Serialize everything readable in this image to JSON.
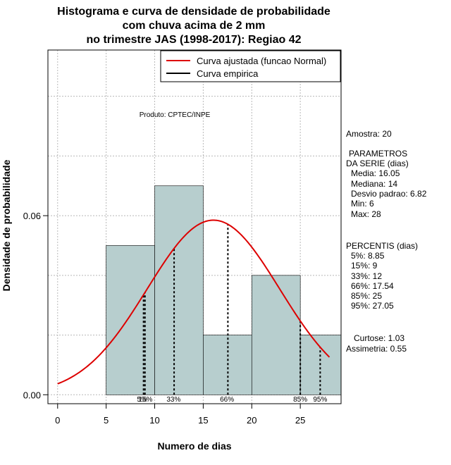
{
  "chart_data": {
    "type": "histogram",
    "title": [
      "Histograma e curva de densidade de probabilidade",
      "com chuva acima de 2 mm",
      "no trimestre JAS (1998-2017): Regiao 42"
    ],
    "xlabel": "Numero de dias",
    "ylabel": "Densidade de probabilidade",
    "xlim": [
      -1,
      29.2
    ],
    "ylim": [
      -0.003,
      0.1155
    ],
    "xticks": [
      0,
      5,
      10,
      15,
      20,
      25
    ],
    "yticks": [
      0.0,
      0.06
    ],
    "ytick_labels": [
      "0.00",
      "0.06"
    ],
    "grid": true,
    "bins": [
      {
        "from": 5,
        "to": 10,
        "density": 0.05
      },
      {
        "from": 10,
        "to": 15,
        "density": 0.07
      },
      {
        "from": 15,
        "to": 20,
        "density": 0.02
      },
      {
        "from": 20,
        "to": 25,
        "density": 0.04
      },
      {
        "from": 25,
        "to": 30,
        "density": 0.02
      }
    ],
    "normal_fit": {
      "mean": 16.05,
      "sd": 6.82,
      "x_from": 0,
      "x_to": 28,
      "color": "#dd0000"
    },
    "percentile_lines": [
      {
        "label": "5%",
        "x": 8.85
      },
      {
        "label": "15%",
        "x": 9
      },
      {
        "label": "33%",
        "x": 12
      },
      {
        "label": "66%",
        "x": 17.54
      },
      {
        "label": "85%",
        "x": 25
      },
      {
        "label": "95%",
        "x": 27.05
      }
    ],
    "percentile_annotations": [
      {
        "text": "5%",
        "x": 8.7
      },
      {
        "text": "15%",
        "x": 9.05
      },
      {
        "text": "33%",
        "x": 11.95
      },
      {
        "text": "66%",
        "x": 17.45
      },
      {
        "text": "85%",
        "x": 25
      },
      {
        "text": "95%",
        "x": 27.05
      }
    ],
    "legend": {
      "position": "top-right",
      "entries": [
        {
          "label": "Curva ajustada (funcao Normal)",
          "color": "#dd0000"
        },
        {
          "label": "Curva empirica",
          "color": "#000000"
        }
      ]
    },
    "annotation": "Produto: CPTEC/INPE",
    "bar_color": "#b7cece"
  },
  "side_panel": {
    "amostra": "Amostra: 20",
    "param_title_1": "PARAMETROS",
    "param_title_2": "DA SERIE (dias)",
    "media": "Media: 16.05",
    "mediana": "Mediana: 14",
    "desvio": "Desvio padrao: 6.82",
    "min": "Min: 6",
    "max": "Max: 28",
    "percentis_title": "PERCENTIS (dias)",
    "p5": "5%: 8.85",
    "p15": "15%: 9",
    "p33": "33%: 12",
    "p66": "66%: 17.54",
    "p85": "85%: 25",
    "p95": "95%: 27.05",
    "curtose": "Curtose: 1.03",
    "assimetria": "Assimetria: 0.55"
  }
}
